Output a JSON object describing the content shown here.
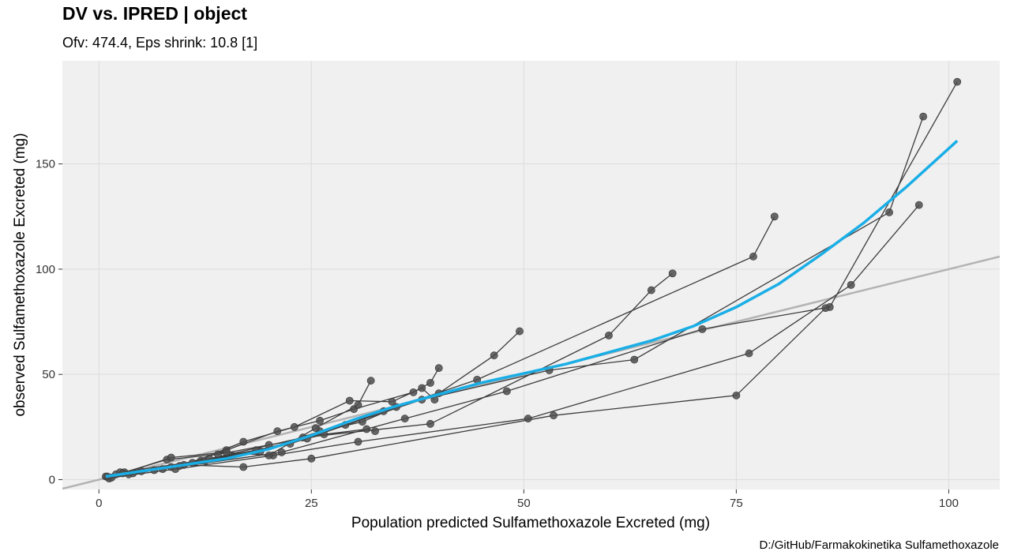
{
  "title": "DV vs. IPRED | object",
  "subtitle": "Ofv: 474.4, Eps shrink: 10.8 [1]",
  "caption": "D:/GitHub/Farmakokinetika Sulfamethoxazole",
  "chart_data": {
    "type": "scatter",
    "xlabel": "Population predicted Sulfamethoxazole Excreted (mg)",
    "ylabel": "observed Sulfamethoxazole Excreted (mg)",
    "xlim": [
      -4.3,
      106
    ],
    "ylim": [
      -4.7,
      199
    ],
    "x_ticks": [
      0,
      25,
      50,
      75,
      100
    ],
    "y_ticks": [
      0,
      50,
      100,
      150
    ],
    "grid": true,
    "colors": {
      "points": "#4d4d4d",
      "lines": "#3c3c3c",
      "smooth": "#1aaee6",
      "identity": "#b3b3b3",
      "panel": "#f0f0f0",
      "grid": "#dcdcdc"
    },
    "identity_line": {
      "intercept": 0,
      "slope": 1
    },
    "subjects": [
      {
        "x": [
          0.8,
          7.5,
          21.5,
          36.0,
          48.0,
          71.0,
          86.0,
          101.0
        ],
        "y": [
          1.5,
          5.0,
          13.0,
          29.0,
          42.0,
          71.5,
          82.0,
          189.0
        ]
      },
      {
        "x": [
          1.2,
          8.5,
          22.5,
          38.0,
          53.0,
          63.0,
          93.0,
          97.0
        ],
        "y": [
          0.5,
          6.0,
          17.0,
          38.0,
          52.0,
          57.0,
          127.0,
          172.5
        ]
      },
      {
        "x": [
          1.5,
          9.0,
          20.5,
          30.5,
          50.5,
          76.5,
          88.5,
          96.5
        ],
        "y": [
          1.0,
          5.0,
          11.5,
          18.0,
          29.0,
          60.0,
          92.5,
          130.5
        ]
      },
      {
        "x": [
          2.0,
          10.0,
          17.0,
          25.0,
          53.5,
          75.0,
          85.5
        ],
        "y": [
          2.5,
          7.0,
          6.0,
          10.0,
          30.5,
          40.0,
          81.5
        ]
      },
      {
        "x": [
          2.5,
          12.0,
          24.0,
          39.0,
          60.0,
          65.0,
          67.5
        ],
        "y": [
          3.5,
          9.0,
          20.0,
          26.5,
          68.5,
          90.0,
          98.0
        ]
      },
      {
        "x": [
          1.0,
          6.5,
          12.5,
          19.0,
          26.0,
          31.0,
          35.0,
          44.5,
          77.0,
          79.5
        ],
        "y": [
          1.5,
          4.5,
          9.0,
          13.5,
          23.0,
          27.5,
          34.5,
          47.5,
          106.0,
          125.0
        ]
      },
      {
        "x": [
          3.0,
          8.0,
          14.0,
          20.0,
          24.5,
          29.0,
          33.5,
          40.0,
          46.5,
          49.5
        ],
        "y": [
          3.5,
          9.5,
          12.0,
          16.5,
          19.5,
          26.0,
          32.5,
          41.0,
          59.0,
          70.5
        ]
      },
      {
        "x": [
          3.5,
          9.5,
          15.0,
          21.0,
          26.0,
          30.0,
          37.0,
          39.0,
          40.0
        ],
        "y": [
          2.5,
          6.5,
          14.0,
          23.0,
          28.0,
          33.5,
          41.5,
          46.0,
          53.0
        ]
      },
      {
        "x": [
          4.0,
          11.0,
          17.0,
          23.0,
          29.5,
          34.5,
          38.0,
          39.5
        ],
        "y": [
          3.0,
          8.0,
          18.0,
          25.0,
          37.5,
          37.0,
          43.5,
          38.0
        ]
      },
      {
        "x": [
          2.8,
          8.5,
          15.0,
          20.0,
          25.5,
          30.5,
          32.0
        ],
        "y": [
          3.0,
          10.5,
          13.0,
          11.5,
          24.5,
          35.5,
          47.0
        ]
      },
      {
        "x": [
          5.0,
          13.0,
          18.5,
          26.5,
          31.5,
          32.5
        ],
        "y": [
          4.0,
          10.0,
          14.0,
          21.5,
          24.0,
          23.0
        ]
      }
    ],
    "smooth": {
      "x": [
        0.8,
        5,
        10,
        15,
        20,
        25,
        30,
        35,
        40,
        45,
        50,
        55,
        60,
        65,
        70,
        75,
        80,
        85,
        90,
        95,
        101
      ],
      "y": [
        1.5,
        4,
        7,
        10,
        14.5,
        21,
        28.5,
        35,
        40.5,
        46,
        50.5,
        55,
        60.5,
        66,
        73,
        82,
        93,
        107,
        122,
        139,
        161
      ]
    }
  }
}
